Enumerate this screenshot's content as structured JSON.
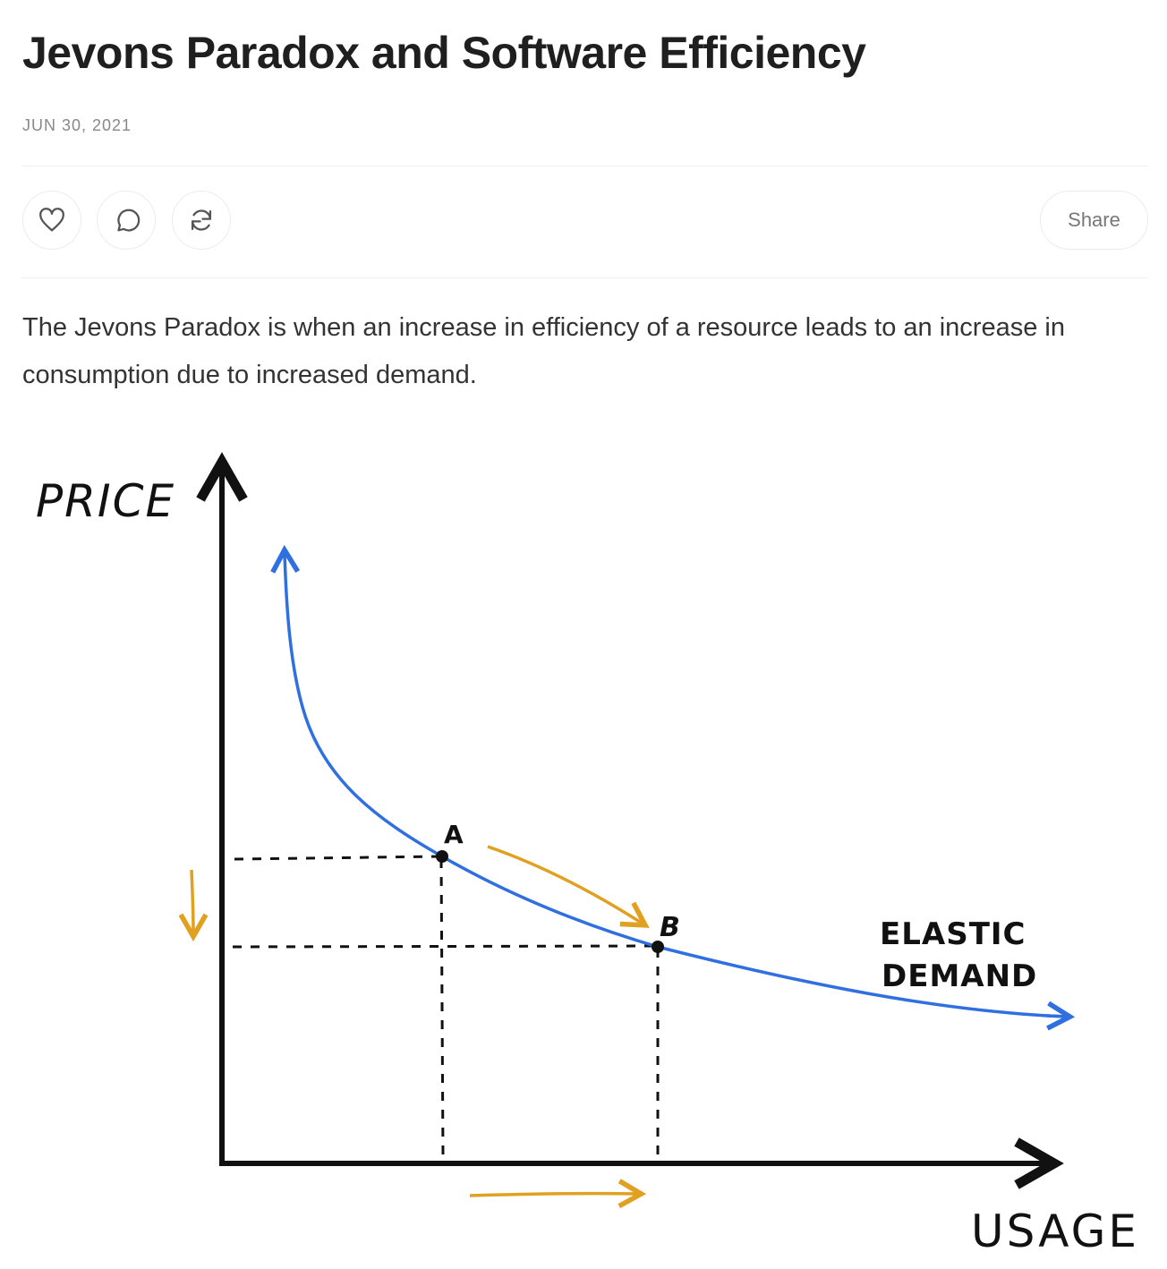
{
  "article": {
    "title": "Jevons Paradox and Software Efficiency",
    "date": "JUN 30, 2021",
    "intro": "The Jevons Paradox is when an increase in efficiency of a resource leads to an increase in consumption due to increased demand."
  },
  "actions": {
    "like_icon": "heart-icon",
    "comment_icon": "comment-bubble-icon",
    "restack_icon": "refresh-icon",
    "share_label": "Share"
  },
  "diagram": {
    "y_label": "PRICE",
    "x_label": "USAGE",
    "point_a": "A",
    "point_b": "B",
    "curve_label_line1": "ELASTIC",
    "curve_label_line2": "DEMAND",
    "colors": {
      "curve": "#2f6fe0",
      "arrows": "#e0a020",
      "axes": "#111111"
    }
  }
}
